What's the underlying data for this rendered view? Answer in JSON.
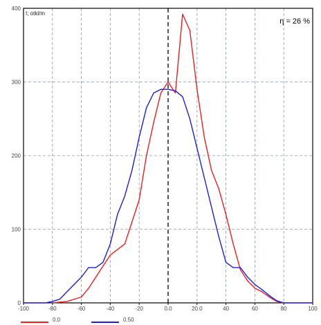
{
  "chart_data": {
    "type": "line",
    "title": "",
    "xlabel": "",
    "ylabel": "",
    "corner_label": "I; otkl/m",
    "annotation": "η = 26 %",
    "xlim": [
      -100.0,
      100.0
    ],
    "ylim": [
      0,
      400
    ],
    "x_ticks": [
      {
        "value": -100.0,
        "label": "-100"
      },
      {
        "value": -80.0,
        "label": "-80"
      },
      {
        "value": -60.0,
        "label": "-60"
      },
      {
        "value": -40.0,
        "label": "-40"
      },
      {
        "value": -20.0,
        "label": "-20"
      },
      {
        "value": 0.0,
        "label": "0.0"
      },
      {
        "value": 20.0,
        "label": "20.0"
      },
      {
        "value": 40.0,
        "label": "40"
      },
      {
        "value": 60.0,
        "label": "60"
      },
      {
        "value": 80.0,
        "label": "80"
      },
      {
        "value": 100.0,
        "label": "100"
      }
    ],
    "y_ticks": [
      {
        "value": 0,
        "label": "0"
      },
      {
        "value": 100,
        "label": "100"
      },
      {
        "value": 200,
        "label": "200"
      },
      {
        "value": 300,
        "label": "300"
      },
      {
        "value": 400,
        "label": "400"
      }
    ],
    "grid": true,
    "zero_line": true,
    "legend_position": "bottom-left",
    "series": [
      {
        "name": "0.0",
        "color": "#ee1c1c",
        "points": [
          [
            -80,
            0
          ],
          [
            -70,
            2
          ],
          [
            -60,
            8
          ],
          [
            -55,
            20
          ],
          [
            -50,
            35
          ],
          [
            -45,
            50
          ],
          [
            -40,
            65
          ],
          [
            -30,
            80
          ],
          [
            -25,
            110
          ],
          [
            -20,
            140
          ],
          [
            -15,
            200
          ],
          [
            -10,
            245
          ],
          [
            -5,
            285
          ],
          [
            0,
            300
          ],
          [
            5,
            285
          ],
          [
            10,
            392
          ],
          [
            15,
            370
          ],
          [
            20,
            290
          ],
          [
            25,
            225
          ],
          [
            30,
            180
          ],
          [
            35,
            155
          ],
          [
            40,
            120
          ],
          [
            45,
            80
          ],
          [
            50,
            45
          ],
          [
            55,
            30
          ],
          [
            60,
            20
          ],
          [
            65,
            15
          ],
          [
            70,
            8
          ],
          [
            75,
            2
          ],
          [
            80,
            0
          ]
        ]
      },
      {
        "name": "0.50",
        "color": "#1c1cdd",
        "points": [
          [
            -100,
            0
          ],
          [
            -85,
            0
          ],
          [
            -80,
            2
          ],
          [
            -75,
            5
          ],
          [
            -70,
            15
          ],
          [
            -65,
            25
          ],
          [
            -60,
            35
          ],
          [
            -55,
            48
          ],
          [
            -50,
            48
          ],
          [
            -45,
            55
          ],
          [
            -40,
            80
          ],
          [
            -35,
            120
          ],
          [
            -30,
            145
          ],
          [
            -25,
            180
          ],
          [
            -20,
            225
          ],
          [
            -15,
            265
          ],
          [
            -10,
            285
          ],
          [
            -5,
            290
          ],
          [
            0,
            290
          ],
          [
            5,
            288
          ],
          [
            10,
            280
          ],
          [
            15,
            250
          ],
          [
            20,
            210
          ],
          [
            25,
            170
          ],
          [
            30,
            130
          ],
          [
            35,
            90
          ],
          [
            40,
            55
          ],
          [
            45,
            48
          ],
          [
            50,
            48
          ],
          [
            55,
            35
          ],
          [
            60,
            25
          ],
          [
            65,
            18
          ],
          [
            70,
            10
          ],
          [
            75,
            3
          ],
          [
            80,
            0
          ],
          [
            100,
            0
          ]
        ]
      }
    ]
  }
}
